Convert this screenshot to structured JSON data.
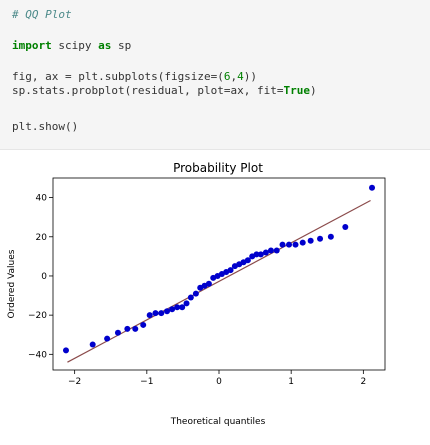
{
  "code_cell": {
    "lines": [
      "# QQ Plot",
      "import scipy as sp",
      "fig, ax = plt.subplots(figsize=(6,4))",
      "sp.stats.probplot(residual, plot=ax, fit=True)",
      "plt.show()"
    ]
  },
  "colors": {
    "cell_background": "#f5f5f5",
    "points": "#0000cc",
    "fit_line": "#8b4b4b"
  },
  "chart_data": {
    "type": "scatter",
    "title": "Probability Plot",
    "xlabel": "Theoretical quantiles",
    "ylabel": "Ordered Values",
    "xlim": [
      -2.3,
      2.3
    ],
    "ylim": [
      -48,
      50
    ],
    "xticks": [
      -2,
      -1,
      0,
      1,
      2
    ],
    "yticks": [
      -40,
      -20,
      0,
      20,
      40
    ],
    "xtick_labels": [
      "−2",
      "−1",
      "0",
      "1",
      "2"
    ],
    "ytick_labels": [
      "−40",
      "−20",
      "0",
      "20",
      "40"
    ],
    "fit_line": {
      "x": [
        -2.1,
        2.1
      ],
      "y": [
        -44,
        38.5
      ]
    },
    "points": [
      {
        "x": -2.12,
        "y": -38
      },
      {
        "x": -1.75,
        "y": -35
      },
      {
        "x": -1.55,
        "y": -32
      },
      {
        "x": -1.4,
        "y": -29
      },
      {
        "x": -1.27,
        "y": -27
      },
      {
        "x": -1.16,
        "y": -27
      },
      {
        "x": -1.05,
        "y": -25
      },
      {
        "x": -0.96,
        "y": -20
      },
      {
        "x": -0.88,
        "y": -19
      },
      {
        "x": -0.8,
        "y": -19
      },
      {
        "x": -0.72,
        "y": -18
      },
      {
        "x": -0.65,
        "y": -17
      },
      {
        "x": -0.58,
        "y": -16
      },
      {
        "x": -0.51,
        "y": -16
      },
      {
        "x": -0.45,
        "y": -14
      },
      {
        "x": -0.39,
        "y": -11
      },
      {
        "x": -0.32,
        "y": -9
      },
      {
        "x": -0.26,
        "y": -6
      },
      {
        "x": -0.2,
        "y": -5
      },
      {
        "x": -0.14,
        "y": -4
      },
      {
        "x": -0.08,
        "y": -1
      },
      {
        "x": -0.02,
        "y": 0
      },
      {
        "x": 0.04,
        "y": 1
      },
      {
        "x": 0.1,
        "y": 2
      },
      {
        "x": 0.16,
        "y": 3
      },
      {
        "x": 0.22,
        "y": 5
      },
      {
        "x": 0.28,
        "y": 6
      },
      {
        "x": 0.34,
        "y": 7
      },
      {
        "x": 0.4,
        "y": 8
      },
      {
        "x": 0.46,
        "y": 10
      },
      {
        "x": 0.52,
        "y": 11
      },
      {
        "x": 0.58,
        "y": 11
      },
      {
        "x": 0.65,
        "y": 12
      },
      {
        "x": 0.72,
        "y": 13
      },
      {
        "x": 0.8,
        "y": 13
      },
      {
        "x": 0.88,
        "y": 16
      },
      {
        "x": 0.97,
        "y": 16
      },
      {
        "x": 1.06,
        "y": 16
      },
      {
        "x": 1.16,
        "y": 17
      },
      {
        "x": 1.27,
        "y": 18
      },
      {
        "x": 1.4,
        "y": 19
      },
      {
        "x": 1.55,
        "y": 20
      },
      {
        "x": 1.75,
        "y": 25
      },
      {
        "x": 2.12,
        "y": 45
      }
    ]
  }
}
